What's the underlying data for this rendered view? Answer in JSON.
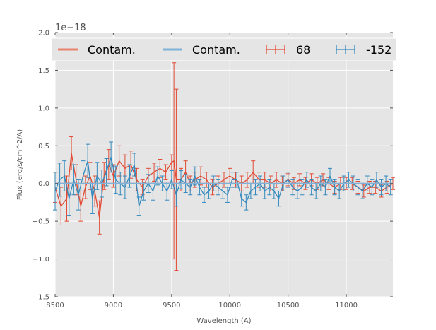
{
  "chart_data": {
    "type": "line",
    "title": "",
    "xlabel": "Wavelength (A)",
    "ylabel": "Flux (erg/s/cm^2/A)",
    "y_offset_label": "1e−18",
    "xlim": [
      8500,
      11400
    ],
    "ylim": [
      -1.5,
      2.0
    ],
    "x_ticks": [
      8500,
      9000,
      9500,
      10000,
      10500,
      11000
    ],
    "x_tick_labels": [
      "8500",
      "9000",
      "9500",
      "10000",
      "10500",
      "11000"
    ],
    "y_ticks": [
      -1.5,
      -1.0,
      -0.5,
      0.0,
      0.5,
      1.0,
      1.5,
      2.0
    ],
    "y_tick_labels": [
      "−1.5",
      "−1.0",
      "−0.5",
      "0.0",
      "0.5",
      "1.0",
      "1.5",
      "2.0"
    ],
    "grid": true,
    "legend": {
      "placement": "top",
      "entries": [
        {
          "label": "Contam.",
          "kind": "line",
          "color": "#E8836F"
        },
        {
          "label": "Contam.",
          "kind": "line",
          "color": "#7FB2D8"
        },
        {
          "label": "68",
          "kind": "errorbar",
          "color": "#E24A33"
        },
        {
          "label": "-152",
          "kind": "errorbar",
          "color": "#348ABD"
        }
      ]
    },
    "series": [
      {
        "name": "68",
        "color": "#E24A33",
        "kind": "errorbar",
        "x": [
          8500,
          8550,
          8600,
          8640,
          8680,
          8720,
          8760,
          8800,
          8840,
          8880,
          8920,
          8960,
          9000,
          9050,
          9100,
          9150,
          9200,
          9250,
          9300,
          9350,
          9400,
          9450,
          9500,
          9520,
          9540,
          9580,
          9620,
          9660,
          9700,
          9750,
          9800,
          9850,
          9900,
          9950,
          10000,
          10050,
          10100,
          10150,
          10200,
          10250,
          10300,
          10350,
          10400,
          10450,
          10500,
          10550,
          10600,
          10650,
          10700,
          10750,
          10800,
          10850,
          10900,
          10950,
          11000,
          11050,
          11100,
          11150,
          11200,
          11250,
          11300,
          11350,
          11400
        ],
        "y": [
          -0.05,
          -0.3,
          -0.2,
          0.4,
          0.05,
          -0.3,
          -0.05,
          0.1,
          -0.1,
          -0.45,
          0.1,
          0.25,
          0.1,
          0.3,
          0.2,
          0.25,
          0.05,
          -0.05,
          0.1,
          0.15,
          0.2,
          0.15,
          0.28,
          0.3,
          0.05,
          0.05,
          0.15,
          0.0,
          0.05,
          0.1,
          0.05,
          -0.05,
          0.0,
          0.05,
          0.1,
          0.05,
          0.0,
          0.05,
          0.15,
          0.05,
          0.05,
          0.0,
          0.05,
          0.0,
          0.05,
          0.0,
          0.05,
          0.0,
          0.05,
          0.0,
          0.05,
          0.0,
          -0.05,
          0.0,
          0.0,
          0.0,
          -0.05,
          -0.1,
          -0.05,
          -0.05,
          -0.1,
          -0.05,
          0.0
        ],
        "err": [
          0.2,
          0.25,
          0.3,
          0.22,
          0.2,
          0.2,
          0.15,
          0.18,
          0.2,
          0.22,
          0.18,
          0.2,
          0.15,
          0.2,
          0.18,
          0.18,
          0.15,
          0.1,
          0.1,
          0.12,
          0.12,
          0.1,
          0.1,
          1.3,
          1.2,
          0.15,
          0.15,
          0.1,
          0.1,
          0.12,
          0.1,
          0.1,
          0.1,
          0.1,
          0.1,
          0.1,
          0.1,
          0.1,
          0.15,
          0.1,
          0.1,
          0.1,
          0.1,
          0.1,
          0.08,
          0.08,
          0.08,
          0.08,
          0.08,
          0.08,
          0.08,
          0.08,
          0.08,
          0.08,
          0.08,
          0.08,
          0.08,
          0.08,
          0.08,
          0.08,
          0.08,
          0.08,
          0.08
        ]
      },
      {
        "name": "-152",
        "color": "#348ABD",
        "kind": "errorbar",
        "x": [
          8500,
          8540,
          8580,
          8620,
          8660,
          8700,
          8740,
          8780,
          8820,
          8860,
          8900,
          8940,
          8980,
          9020,
          9060,
          9100,
          9140,
          9180,
          9220,
          9260,
          9300,
          9340,
          9380,
          9420,
          9460,
          9500,
          9540,
          9580,
          9620,
          9660,
          9700,
          9740,
          9780,
          9820,
          9860,
          9900,
          9940,
          9980,
          10020,
          10060,
          10100,
          10140,
          10180,
          10220,
          10260,
          10300,
          10340,
          10380,
          10420,
          10460,
          10500,
          10540,
          10580,
          10620,
          10660,
          10700,
          10740,
          10780,
          10820,
          10860,
          10900,
          10940,
          10980,
          11020,
          11060,
          11100,
          11140,
          11180,
          11220,
          11260,
          11300,
          11340,
          11380
        ],
        "y": [
          -0.1,
          0.05,
          0.1,
          -0.2,
          0.05,
          -0.15,
          0.1,
          0.3,
          -0.2,
          0.1,
          0.0,
          0.15,
          0.35,
          0.05,
          0.0,
          -0.05,
          0.1,
          0.25,
          -0.3,
          -0.1,
          0.0,
          -0.1,
          0.1,
          0.0,
          -0.1,
          0.05,
          -0.15,
          0.05,
          0.0,
          -0.05,
          0.1,
          -0.05,
          -0.15,
          -0.1,
          0.0,
          -0.05,
          -0.1,
          -0.15,
          0.05,
          0.05,
          -0.2,
          -0.25,
          -0.1,
          -0.05,
          0.0,
          -0.1,
          -0.05,
          -0.1,
          -0.2,
          0.0,
          0.05,
          -0.05,
          -0.1,
          -0.05,
          0.05,
          -0.05,
          -0.1,
          0.0,
          -0.05,
          0.1,
          -0.05,
          -0.1,
          0.0,
          0.05,
          0.0,
          -0.05,
          -0.1,
          0.0,
          -0.05,
          0.05,
          -0.05,
          0.0,
          -0.05
        ],
        "err": [
          0.25,
          0.22,
          0.2,
          0.22,
          0.2,
          0.2,
          0.2,
          0.22,
          0.2,
          0.18,
          0.18,
          0.18,
          0.2,
          0.18,
          0.15,
          0.15,
          0.15,
          0.15,
          0.12,
          0.12,
          0.12,
          0.12,
          0.12,
          0.1,
          0.12,
          0.12,
          0.15,
          0.12,
          0.12,
          0.1,
          0.12,
          0.1,
          0.1,
          0.1,
          0.1,
          0.1,
          0.1,
          0.1,
          0.1,
          0.1,
          0.1,
          0.1,
          0.1,
          0.1,
          0.1,
          0.1,
          0.1,
          0.1,
          0.1,
          0.1,
          0.1,
          0.1,
          0.1,
          0.1,
          0.1,
          0.1,
          0.1,
          0.1,
          0.1,
          0.1,
          0.1,
          0.1,
          0.1,
          0.1,
          0.1,
          0.1,
          0.1,
          0.1,
          0.1,
          0.1,
          0.1,
          0.1,
          0.1
        ]
      },
      {
        "name": "Contam.",
        "color": "#E8836F",
        "kind": "line",
        "x": [
          8500,
          9000,
          9500,
          10000,
          10500,
          11000,
          11400
        ],
        "y": [
          0.0,
          0.0,
          0.0,
          0.0,
          0.0,
          0.0,
          0.0
        ]
      },
      {
        "name": "Contam.",
        "color": "#7FB2D8",
        "kind": "line",
        "x": [
          8500,
          9000,
          9500,
          10000,
          10500,
          11000,
          11400
        ],
        "y": [
          0.0,
          0.0,
          0.0,
          0.0,
          0.0,
          0.0,
          0.0
        ]
      }
    ]
  }
}
